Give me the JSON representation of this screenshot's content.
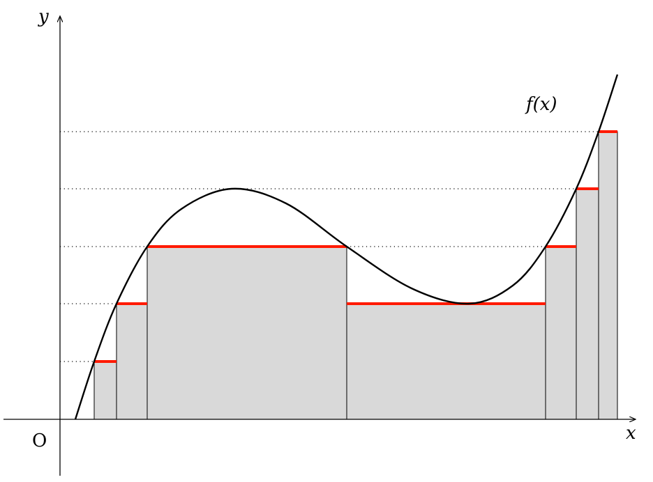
{
  "axes": {
    "x_label": "x",
    "y_label": "y",
    "origin_label": "O"
  },
  "curve_label": "f(x)",
  "colors": {
    "fill": "#d9d9d9",
    "level_line": "#ff1a00",
    "curve": "#000000"
  }
}
